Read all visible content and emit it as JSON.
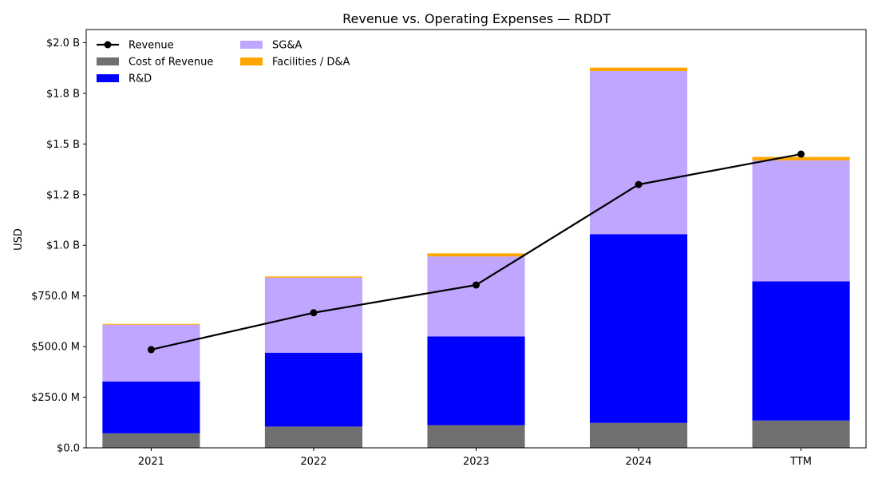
{
  "chart_data": {
    "type": "bar",
    "title": "Revenue vs. Operating Expenses — RDDT",
    "xlabel": "",
    "ylabel": "USD",
    "categories": [
      "2021",
      "2022",
      "2023",
      "2024",
      "TTM"
    ],
    "ylim": [
      0,
      2065000000
    ],
    "yticks": [
      0,
      250000000,
      500000000,
      750000000,
      1000000000,
      1250000000,
      1500000000,
      1750000000,
      2000000000
    ],
    "ytick_labels": [
      "$0.0",
      "$250.0 M",
      "$500.0 M",
      "$750.0 M",
      "$1.0 B",
      "$1.2 B",
      "$1.5 B",
      "$1.8 B",
      "$2.0 B"
    ],
    "grid": false,
    "legend_position": "top-left",
    "series": [
      {
        "name": "Cost of Revenue",
        "kind": "bar",
        "color": "#707070",
        "values": [
          72000000,
          105000000,
          112000000,
          123000000,
          135000000
        ]
      },
      {
        "name": "R&D",
        "kind": "bar",
        "color": "#0000ff",
        "values": [
          256000000,
          365000000,
          438000000,
          932000000,
          687000000
        ]
      },
      {
        "name": "SG&A",
        "kind": "bar",
        "color": "#c0a6ff",
        "values": [
          280000000,
          370000000,
          395000000,
          805000000,
          597000000
        ]
      },
      {
        "name": "Facilities / D&A",
        "kind": "bar",
        "color": "#ffa500",
        "values": [
          4000000,
          6000000,
          15000000,
          17000000,
          17000000
        ]
      },
      {
        "name": "Revenue",
        "kind": "line",
        "color": "#000000",
        "values": [
          485000000,
          667000000,
          804000000,
          1300000000,
          1450000000
        ]
      }
    ],
    "legend_order": [
      "Revenue",
      "Cost of Revenue",
      "R&D",
      "SG&A",
      "Facilities / D&A"
    ]
  }
}
